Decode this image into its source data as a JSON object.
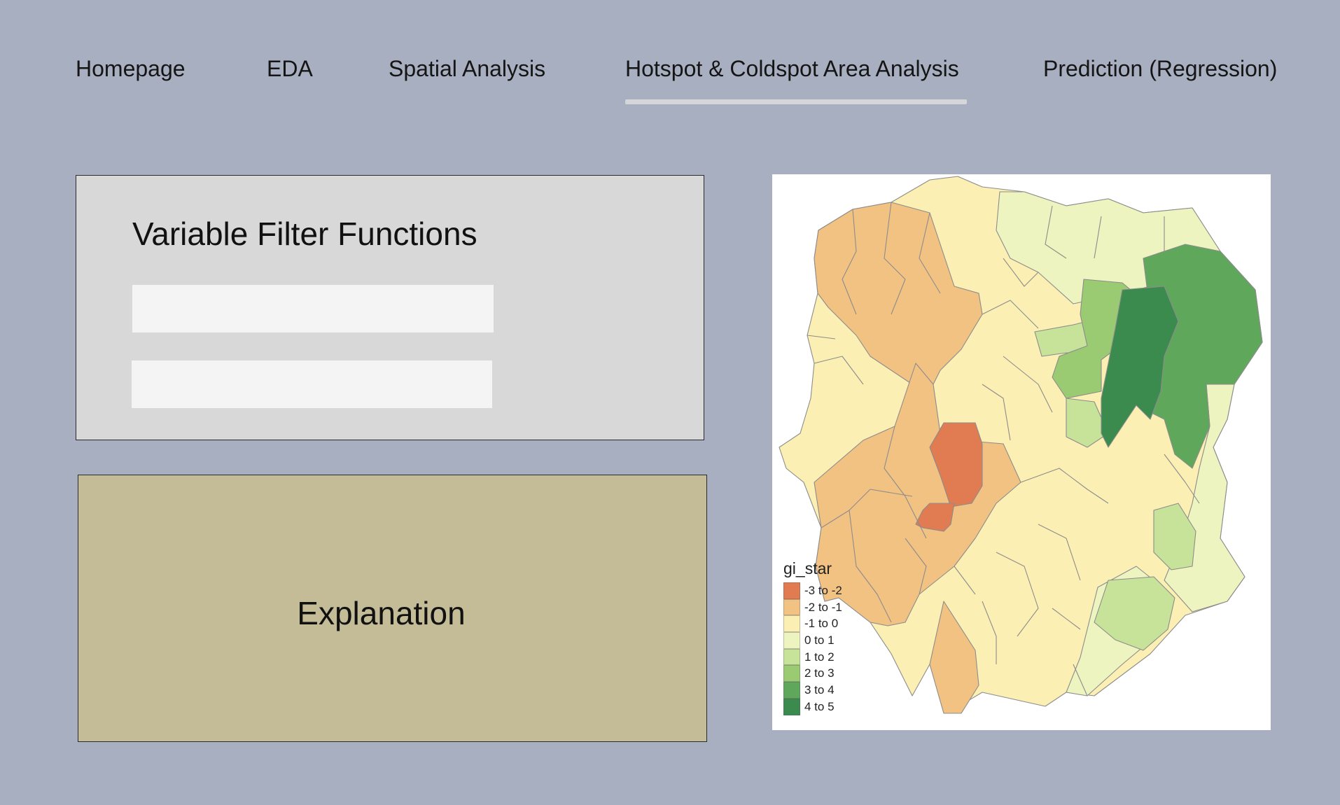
{
  "nav": {
    "tabs": [
      {
        "label": "Homepage"
      },
      {
        "label": "EDA"
      },
      {
        "label": "Spatial Analysis"
      },
      {
        "label": "Hotspot & Coldspot Area Analysis",
        "active": true
      },
      {
        "label": "Prediction (Regression)"
      }
    ]
  },
  "filter_panel": {
    "title": "Variable Filter Functions",
    "input_1": {
      "value": "",
      "placeholder": ""
    },
    "input_2": {
      "value": "",
      "placeholder": ""
    }
  },
  "explanation_panel": {
    "label": "Explanation"
  },
  "map": {
    "legend_title": "gi_star",
    "legend": [
      {
        "label": "-3 to -2",
        "color": "#e07b52"
      },
      {
        "label": "-2 to -1",
        "color": "#f2c283"
      },
      {
        "label": "-1 to 0",
        "color": "#fbefb3"
      },
      {
        "label": "0 to 1",
        "color": "#eef4c0"
      },
      {
        "label": "1 to 2",
        "color": "#c7e39a"
      },
      {
        "label": "2 to 3",
        "color": "#9acb72"
      },
      {
        "label": "3 to 4",
        "color": "#5fa85b"
      },
      {
        "label": "4 to 5",
        "color": "#3b8a4e"
      }
    ]
  },
  "colors": {
    "page_background": "#a8afc0",
    "filter_panel_background": "#d8d8d8",
    "explanation_panel_background": "#c3bc97",
    "active_tab_underline": "#d6d6d9"
  }
}
